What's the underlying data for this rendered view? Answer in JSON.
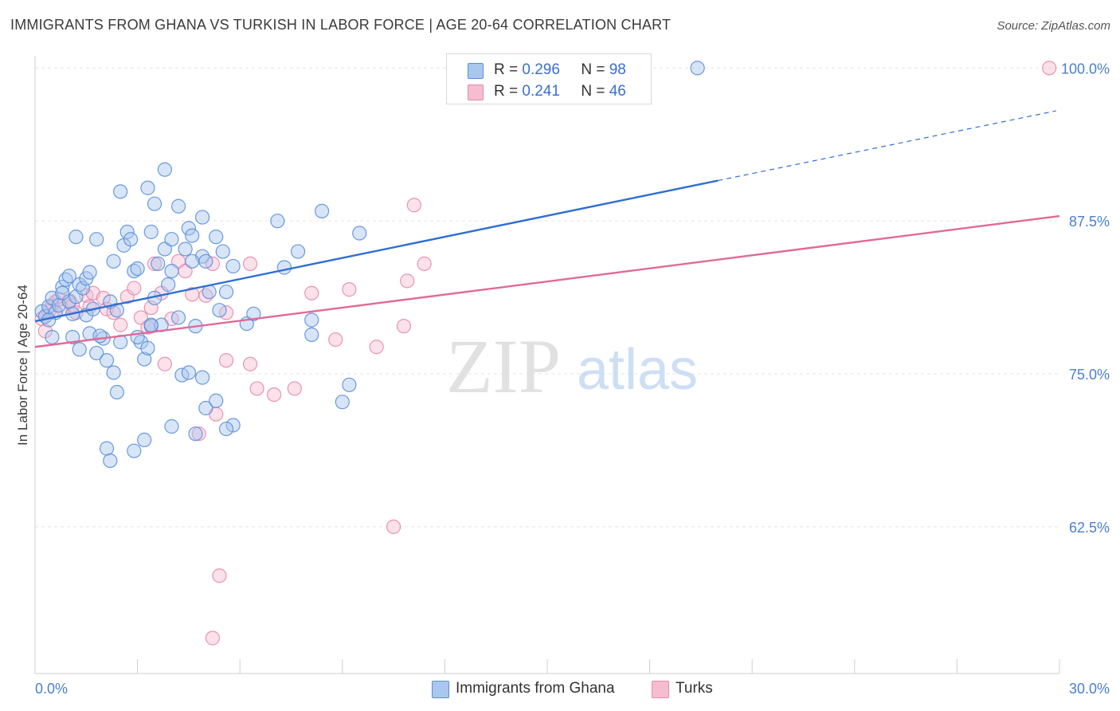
{
  "title": "IMMIGRANTS FROM GHANA VS TURKISH IN LABOR FORCE | AGE 20-64 CORRELATION CHART",
  "source": "Source: ZipAtlas.com",
  "watermark": {
    "zip": "ZIP",
    "atlas": "atlas"
  },
  "legend": {
    "r_label": "R =",
    "n_label": "N =",
    "entries": [
      {
        "r": "0.296",
        "n": "98",
        "color": "#a9c6ee",
        "edge": "#5b8fdb"
      },
      {
        "r": "0.241",
        "n": "46",
        "color": "#f6bdd0",
        "edge": "#e58aa8"
      }
    ]
  },
  "bottom_legend": [
    {
      "label": "Immigrants from Ghana",
      "color": "#a9c6ee",
      "edge": "#5b8fdb"
    },
    {
      "label": "Turks",
      "color": "#f6bdd0",
      "edge": "#e58aa8"
    }
  ],
  "chart_data": {
    "type": "scatter",
    "title": "IMMIGRANTS FROM GHANA VS TURKISH IN LABOR FORCE | AGE 20-64 CORRELATION CHART",
    "xlabel": "",
    "ylabel": "In Labor Force | Age 20-64",
    "xlim": [
      0,
      30
    ],
    "ylim": [
      50.5,
      101
    ],
    "x_tick_labels": [
      "0.0%",
      "30.0%"
    ],
    "y_ticks": [
      62.5,
      75.0,
      87.5,
      100.0
    ],
    "y_tick_labels": [
      "62.5%",
      "75.0%",
      "87.5%",
      "100.0%"
    ],
    "grid": true,
    "legend_position": "top-center",
    "series": [
      {
        "name": "Immigrants from Ghana",
        "color": "#5b8fdb",
        "fill": "#a9c6ee",
        "trend": {
          "x0": 0,
          "y0": 79.3,
          "x1": 20.0,
          "y1": 90.8,
          "dash_to_x": 29.9,
          "dash_to_y": 96.5
        },
        "points": [
          [
            0.2,
            80.1
          ],
          [
            0.3,
            79.7
          ],
          [
            0.4,
            80.5
          ],
          [
            0.5,
            81.2
          ],
          [
            0.6,
            80.0
          ],
          [
            0.4,
            79.4
          ],
          [
            0.7,
            80.6
          ],
          [
            0.5,
            78.0
          ],
          [
            0.8,
            82.1
          ],
          [
            0.9,
            82.7
          ],
          [
            1.0,
            80.9
          ],
          [
            1.1,
            79.9
          ],
          [
            0.8,
            81.6
          ],
          [
            1.2,
            81.3
          ],
          [
            1.3,
            82.3
          ],
          [
            1.4,
            82.0
          ],
          [
            1.0,
            83.0
          ],
          [
            1.1,
            78.0
          ],
          [
            1.3,
            77.0
          ],
          [
            1.5,
            79.8
          ],
          [
            1.6,
            78.3
          ],
          [
            1.5,
            82.8
          ],
          [
            1.7,
            80.3
          ],
          [
            1.6,
            83.3
          ],
          [
            1.8,
            76.7
          ],
          [
            2.0,
            77.9
          ],
          [
            1.9,
            78.1
          ],
          [
            2.1,
            76.1
          ],
          [
            2.2,
            80.9
          ],
          [
            2.3,
            84.2
          ],
          [
            2.4,
            80.2
          ],
          [
            2.5,
            77.6
          ],
          [
            1.2,
            86.2
          ],
          [
            1.8,
            86.0
          ],
          [
            2.5,
            89.9
          ],
          [
            2.6,
            85.5
          ],
          [
            2.7,
            86.6
          ],
          [
            2.8,
            86.0
          ],
          [
            2.9,
            83.4
          ],
          [
            3.0,
            83.6
          ],
          [
            3.1,
            77.6
          ],
          [
            3.2,
            76.2
          ],
          [
            3.3,
            77.1
          ],
          [
            3.4,
            78.9
          ],
          [
            3.5,
            81.2
          ],
          [
            3.6,
            84.0
          ],
          [
            3.8,
            85.2
          ],
          [
            3.9,
            82.3
          ],
          [
            3.3,
            90.2
          ],
          [
            3.5,
            88.9
          ],
          [
            3.4,
            86.6
          ],
          [
            3.7,
            79.0
          ],
          [
            4.2,
            79.6
          ],
          [
            4.4,
            85.2
          ],
          [
            4.5,
            86.9
          ],
          [
            4.7,
            78.9
          ],
          [
            4.6,
            86.3
          ],
          [
            4.9,
            84.6
          ],
          [
            5.1,
            81.7
          ],
          [
            5.3,
            86.2
          ],
          [
            5.5,
            85.0
          ],
          [
            5.6,
            81.7
          ],
          [
            5.4,
            80.2
          ],
          [
            5.8,
            83.8
          ],
          [
            4.0,
            86.0
          ],
          [
            3.8,
            91.7
          ],
          [
            4.2,
            88.7
          ],
          [
            4.9,
            87.8
          ],
          [
            4.0,
            83.4
          ],
          [
            4.6,
            84.2
          ],
          [
            5.0,
            84.2
          ],
          [
            3.0,
            78.0
          ],
          [
            2.3,
            75.1
          ],
          [
            2.4,
            73.5
          ],
          [
            3.4,
            79.0
          ],
          [
            4.3,
            74.9
          ],
          [
            4.5,
            75.1
          ],
          [
            4.9,
            74.7
          ],
          [
            5.0,
            72.2
          ],
          [
            5.3,
            72.8
          ],
          [
            5.8,
            70.8
          ],
          [
            5.6,
            70.5
          ],
          [
            4.0,
            70.7
          ],
          [
            4.7,
            70.1
          ],
          [
            2.9,
            68.7
          ],
          [
            3.2,
            69.6
          ],
          [
            2.1,
            68.9
          ],
          [
            2.2,
            67.9
          ],
          [
            6.2,
            79.1
          ],
          [
            6.4,
            79.9
          ],
          [
            7.3,
            83.7
          ],
          [
            7.1,
            87.5
          ],
          [
            7.7,
            85.0
          ],
          [
            8.1,
            79.4
          ],
          [
            8.1,
            78.2
          ],
          [
            9.2,
            74.1
          ],
          [
            8.4,
            88.3
          ],
          [
            9.5,
            86.5
          ],
          [
            9.0,
            72.7
          ],
          [
            19.4,
            100.0
          ]
        ]
      },
      {
        "name": "Turks",
        "color": "#e58aa8",
        "fill": "#f6bdd0",
        "trend": {
          "x0": 0,
          "y0": 77.2,
          "x1": 30.0,
          "y1": 87.9
        },
        "points": [
          [
            0.2,
            79.5
          ],
          [
            0.3,
            78.5
          ],
          [
            0.4,
            80.1
          ],
          [
            0.5,
            80.6
          ],
          [
            0.6,
            80.9
          ],
          [
            0.7,
            81.1
          ],
          [
            0.8,
            80.3
          ],
          [
            1.0,
            81.0
          ],
          [
            1.1,
            80.6
          ],
          [
            1.2,
            80.0
          ],
          [
            1.5,
            81.4
          ],
          [
            1.6,
            80.5
          ],
          [
            1.7,
            81.6
          ],
          [
            2.0,
            81.2
          ],
          [
            2.1,
            80.3
          ],
          [
            2.3,
            80.0
          ],
          [
            2.5,
            79.0
          ],
          [
            2.7,
            81.3
          ],
          [
            2.9,
            82.0
          ],
          [
            3.1,
            79.6
          ],
          [
            3.3,
            78.8
          ],
          [
            3.4,
            80.4
          ],
          [
            3.5,
            84.0
          ],
          [
            3.7,
            81.6
          ],
          [
            4.0,
            79.5
          ],
          [
            4.2,
            84.2
          ],
          [
            4.4,
            83.4
          ],
          [
            4.6,
            81.5
          ],
          [
            5.0,
            81.4
          ],
          [
            5.2,
            84.0
          ],
          [
            5.6,
            80.0
          ],
          [
            6.3,
            84.0
          ],
          [
            5.6,
            76.1
          ],
          [
            6.3,
            75.8
          ],
          [
            6.5,
            73.8
          ],
          [
            7.0,
            73.3
          ],
          [
            7.6,
            73.8
          ],
          [
            5.3,
            71.7
          ],
          [
            4.8,
            70.1
          ],
          [
            3.8,
            75.8
          ],
          [
            8.1,
            81.6
          ],
          [
            8.8,
            77.8
          ],
          [
            9.2,
            81.9
          ],
          [
            10.0,
            77.2
          ],
          [
            10.8,
            78.9
          ],
          [
            10.9,
            82.6
          ],
          [
            11.1,
            88.8
          ],
          [
            11.4,
            84.0
          ],
          [
            10.5,
            62.5
          ],
          [
            5.4,
            58.5
          ],
          [
            5.2,
            53.4
          ],
          [
            29.7,
            100.0
          ]
        ]
      }
    ]
  }
}
